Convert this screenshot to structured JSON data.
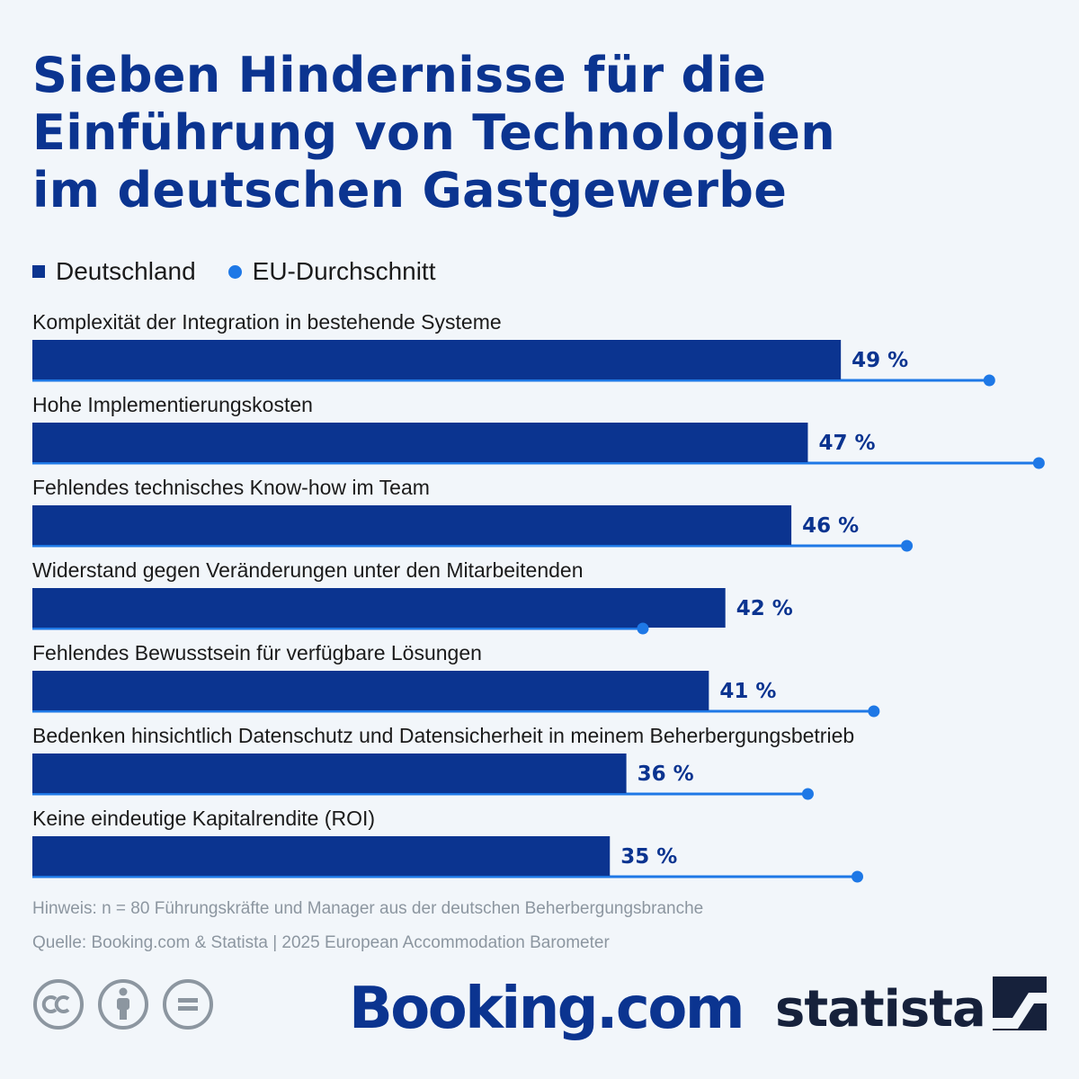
{
  "title_lines": [
    "Sieben Hindernisse für die",
    "Einführung von Technologien",
    "im deutschen Gastgewerbe"
  ],
  "legend": {
    "germany": "Deutschland",
    "eu": "EU-Durchschnitt"
  },
  "colors": {
    "germany": "#0b3490",
    "eu": "#1e78e6",
    "title": "#0b3490",
    "background": "#f2f6fa"
  },
  "chart_data": {
    "type": "bar",
    "orientation": "horizontal",
    "categories": [
      "Komplexität der Integration in bestehende Systeme",
      "Hohe Implementierungskosten",
      "Fehlendes technisches Know-how im Team",
      "Widerstand gegen Veränderungen unter den Mitarbeitenden",
      "Fehlendes Bewusstsein für verfügbare Lösungen",
      "Bedenken hinsichtlich Datenschutz und Datensicherheit in meinem Beherbergungsbetrieb",
      "Keine eindeutige Kapitalrendite (ROI)"
    ],
    "series": [
      {
        "name": "Deutschland",
        "values": [
          49,
          47,
          46,
          42,
          41,
          36,
          35
        ]
      },
      {
        "name": "EU-Durchschnitt",
        "values": [
          58,
          61,
          53,
          37,
          51,
          47,
          50
        ]
      }
    ],
    "value_labels": [
      "49 %",
      "47 %",
      "46 %",
      "42 %",
      "41 %",
      "36 %",
      "35 %"
    ],
    "xlim": [
      0,
      63
    ],
    "unit": "%",
    "grid": false,
    "legend_position": "top-left"
  },
  "note": "Hinweis: n = 80 Führungskräfte und Manager aus der deutschen Beherbergungsbranche",
  "source": "Quelle: Booking.com & Statista | 2025 European Accommodation Barometer",
  "license_icons": [
    "creative-commons-icon",
    "attribution-icon",
    "no-derivatives-icon"
  ],
  "logos": {
    "booking": "Booking.com",
    "statista": "statista"
  }
}
